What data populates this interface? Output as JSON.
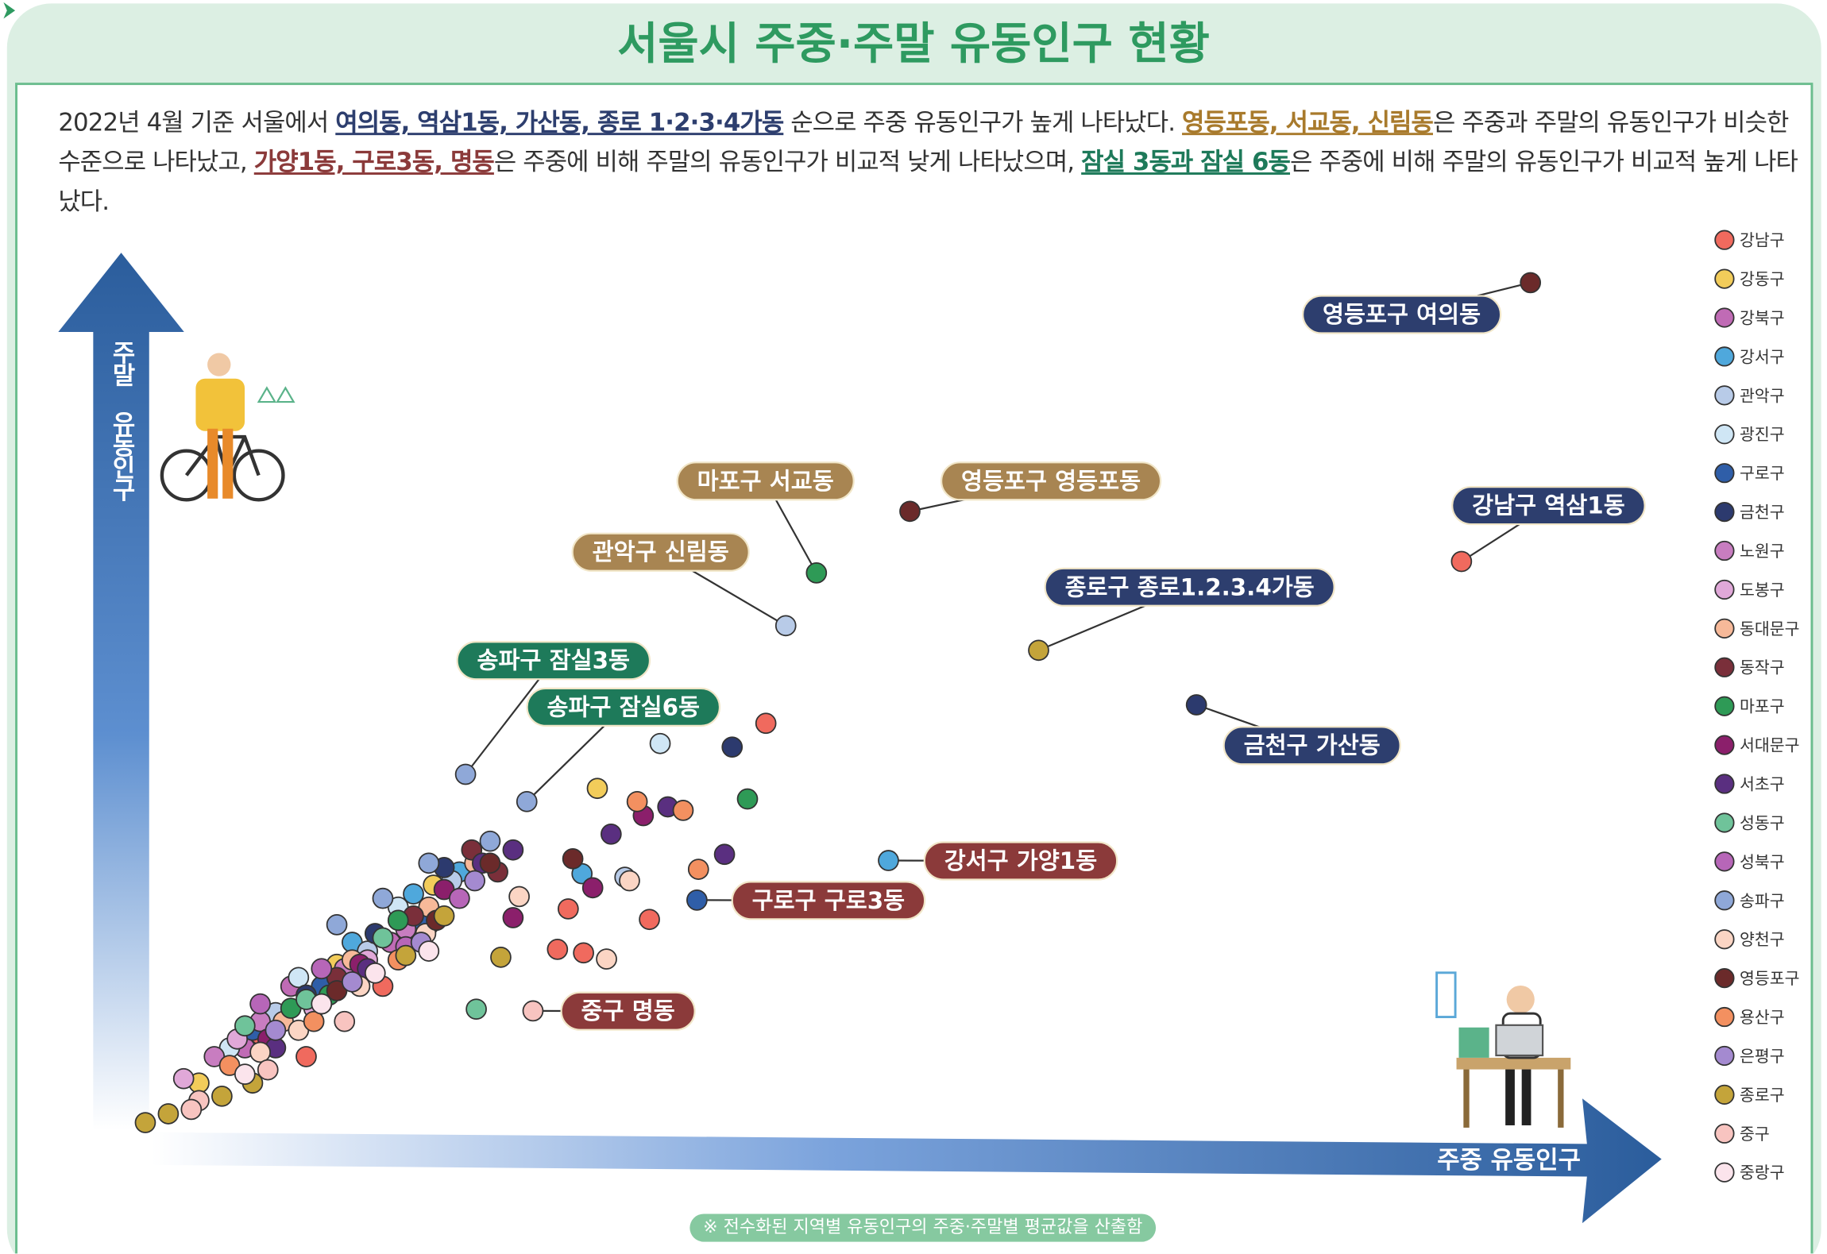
{
  "title": "서울시 주중·주말 유동인구 현황",
  "description": [
    {
      "text": "2022년 4월 기준 서울에서 "
    },
    {
      "text": "여의동, 역삼1동, 가산동, 종로 1·2·3·4가동",
      "color": "#2d3e6e"
    },
    {
      "text": " 순으로 주중 유동인구가 높게 나타났다. "
    },
    {
      "text": "영등포동, 서교동, 신림동",
      "color": "#a87a2c"
    },
    {
      "text": "은 주중과 주말의 유동인구가 비슷한 수준으로 나타났고, "
    },
    {
      "text": "가양1동, 구로3동, 명동",
      "color": "#8b3a3a"
    },
    {
      "text": "은 주중에 비해 주말의 유동인구가 비교적 낮게 나타났으며, "
    },
    {
      "text": "잠실 3동과 잠실 6동",
      "color": "#1e7a5a"
    },
    {
      "text": "은 주중에 비해 주말의 유동인구가 비교적 높게 나타났다."
    }
  ],
  "footnote": "※ 전수화된 지역별 유동인구의 주중·주말별 평균값을 산출함",
  "chart_data": {
    "type": "scatter",
    "x_label": "주중 유동인구",
    "y_label": "주말 유동인구",
    "xlim": [
      0,
      100
    ],
    "ylim": [
      0,
      100
    ],
    "series": [
      {
        "name": "강남구",
        "color": "#f06a5e",
        "x": [
          87.4,
          42,
          29.1,
          34.4,
          28.4,
          30.1,
          12,
          17,
          9,
          20
        ],
        "y": [
          65.3,
          46.9,
          25.8,
          24.6,
          21.2,
          20.8,
          9,
          17,
          11.5,
          24
        ],
        "labels": [
          "강남구 역삼1동",
          null,
          null,
          null,
          null,
          null,
          null,
          null,
          null,
          null
        ]
      },
      {
        "name": "강동구",
        "color": "#f2cc5a",
        "x": [
          31,
          5,
          14,
          20.3
        ],
        "y": [
          39.5,
          6,
          19.5,
          28.5
        ],
        "labels": [
          null,
          null,
          null,
          null
        ]
      },
      {
        "name": "강북구",
        "color": "#c06bb5",
        "x": [
          8,
          13,
          17.5,
          11
        ],
        "y": [
          10,
          15,
          22,
          17
        ],
        "labels": [
          null,
          null,
          null,
          null
        ]
      },
      {
        "name": "강서구",
        "color": "#4fa8dc",
        "x": [
          50,
          30,
          22,
          19,
          15
        ],
        "y": [
          31.3,
          29.8,
          30,
          27.5,
          22
        ],
        "labels": [
          "강서구 가양1동",
          null,
          null,
          null,
          null
        ]
      },
      {
        "name": "관악구",
        "color": "#b8cbe8",
        "x": [
          43.3,
          32.8,
          10,
          16,
          21.5
        ],
        "y": [
          58,
          29.4,
          14,
          21,
          29
        ],
        "labels": [
          "관악구 신림동",
          null,
          null,
          null,
          null
        ]
      },
      {
        "name": "광진구",
        "color": "#cfe6f5",
        "x": [
          35.1,
          11.5,
          18,
          7
        ],
        "y": [
          44.6,
          18,
          26,
          10
        ],
        "labels": [
          null,
          null,
          null,
          null
        ]
      },
      {
        "name": "구로구",
        "color": "#2f5ea8",
        "x": [
          37.5,
          13,
          19.5,
          8.5
        ],
        "y": [
          26.8,
          17,
          24,
          12
        ],
        "labels": [
          "구로구 구로3동",
          null,
          null,
          null
        ]
      },
      {
        "name": "금천구",
        "color": "#2c3a6e",
        "x": [
          70.1,
          39.8,
          21,
          16.5,
          12
        ],
        "y": [
          49,
          44.2,
          30.5,
          23,
          16
        ],
        "labels": [
          "금천구 가산동",
          null,
          null,
          null,
          null
        ]
      },
      {
        "name": "노원구",
        "color": "#c87dc0",
        "x": [
          9,
          14.5,
          18.5,
          6
        ],
        "y": [
          13,
          19,
          23.5,
          9
        ],
        "labels": [
          null,
          null,
          null,
          null
        ]
      },
      {
        "name": "도봉구",
        "color": "#e0a8d8",
        "x": [
          7.5,
          12.5,
          16,
          4
        ],
        "y": [
          11,
          14.5,
          20,
          6.5
        ],
        "labels": [
          null,
          null,
          null,
          null
        ]
      },
      {
        "name": "동대문구",
        "color": "#f7b999",
        "x": [
          10.5,
          15,
          20,
          23
        ],
        "y": [
          13,
          20,
          26,
          31
        ],
        "labels": [
          null,
          null,
          null,
          null
        ]
      },
      {
        "name": "동작구",
        "color": "#7a2f3a",
        "x": [
          14,
          19,
          24.5,
          22.8
        ],
        "y": [
          18,
          25,
          30,
          32.5
        ],
        "labels": [
          null,
          null,
          null,
          null
        ]
      },
      {
        "name": "마포구",
        "color": "#2e9a56",
        "x": [
          45.3,
          40.8,
          13.5,
          11,
          18
        ],
        "y": [
          64,
          38.3,
          16,
          14.5,
          24.5
        ],
        "labels": [
          "마포구 서교동",
          null,
          null,
          null,
          null
        ]
      },
      {
        "name": "서대문구",
        "color": "#8b1f6b",
        "x": [
          34,
          30.7,
          25.5,
          21,
          15.5,
          9.5
        ],
        "y": [
          36.4,
          28.2,
          24.8,
          28,
          19.5,
          11
        ],
        "labels": [
          null,
          null,
          null,
          null,
          null,
          null
        ]
      },
      {
        "name": "서초구",
        "color": "#5a2f80",
        "x": [
          35.6,
          31.9,
          39.3,
          16,
          10,
          23.5,
          25.5
        ],
        "y": [
          37.4,
          34.3,
          32,
          19,
          10,
          31,
          32.5
        ],
        "labels": [
          null,
          null,
          null,
          null,
          null,
          null,
          null
        ]
      },
      {
        "name": "성동구",
        "color": "#6fc39a",
        "x": [
          23.1,
          12,
          17,
          8
        ],
        "y": [
          14.4,
          15.5,
          22.5,
          12.5
        ],
        "labels": [
          null,
          null,
          null,
          null
        ]
      },
      {
        "name": "성북구",
        "color": "#b766b8",
        "x": [
          13,
          18.5,
          9,
          22
        ],
        "y": [
          19,
          21.5,
          15,
          27
        ],
        "labels": [
          null,
          null,
          null,
          null
        ]
      },
      {
        "name": "송파구",
        "color": "#8fa8d8",
        "x": [
          22.4,
          26.4,
          20,
          17,
          14,
          24
        ],
        "y": [
          41.1,
          38,
          31,
          27,
          24,
          33.5
        ],
        "labels": [
          "송파구 잠실3동",
          "송파구 잠실6동",
          null,
          null,
          null,
          null
        ]
      },
      {
        "name": "양천구",
        "color": "#fbd5c4",
        "x": [
          33.1,
          31.6,
          25.9,
          11.5,
          15.5,
          19.8,
          9
        ],
        "y": [
          29,
          20.1,
          27.2,
          12,
          17,
          23,
          9.5
        ],
        "labels": [
          null,
          null,
          null,
          null,
          null,
          null,
          null
        ]
      },
      {
        "name": "영등포구",
        "color": "#6b2a2a",
        "x": [
          91.9,
          51.4,
          29.4,
          24,
          20.5,
          14
        ],
        "y": [
          97,
          71,
          31.5,
          31,
          24.5,
          16.5
        ],
        "labels": [
          "영등포구 여의동",
          "영등포구 영등포동",
          null,
          null,
          null,
          null
        ]
      },
      {
        "name": "용산구",
        "color": "#f39060",
        "x": [
          33.6,
          36.6,
          37.6,
          12.5,
          18,
          7
        ],
        "y": [
          38,
          37,
          30.3,
          13,
          20,
          8
        ],
        "labels": [
          null,
          null,
          null,
          null,
          null,
          null
        ]
      },
      {
        "name": "은평구",
        "color": "#a48ad0",
        "x": [
          10,
          15,
          19.5,
          23
        ],
        "y": [
          12,
          17.5,
          22,
          29
        ],
        "labels": [
          null,
          null,
          null,
          null
        ]
      },
      {
        "name": "종로구",
        "color": "#c4a43a",
        "x": [
          59.8,
          24.7,
          1.5,
          3,
          6.5,
          8.5,
          18.5,
          21
        ],
        "y": [
          55.2,
          20.3,
          1.5,
          2.5,
          4.5,
          6,
          20.5,
          25
        ],
        "labels": [
          "종로구 종로1.2.3.4가동",
          null,
          null,
          null,
          null,
          null,
          null,
          null
        ]
      },
      {
        "name": "중구",
        "color": "#f8c4c0",
        "x": [
          26.8,
          5,
          9.5,
          14.5,
          4.5
        ],
        "y": [
          14.2,
          4,
          7.5,
          13,
          3
        ],
        "labels": [
          "중구 명동",
          null,
          null,
          null,
          null
        ]
      },
      {
        "name": "중랑구",
        "color": "#fbe4ec",
        "x": [
          13,
          16.5,
          8,
          20
        ],
        "y": [
          15,
          18.5,
          7,
          21
        ],
        "labels": [
          null,
          null,
          null,
          null
        ]
      }
    ]
  }
}
